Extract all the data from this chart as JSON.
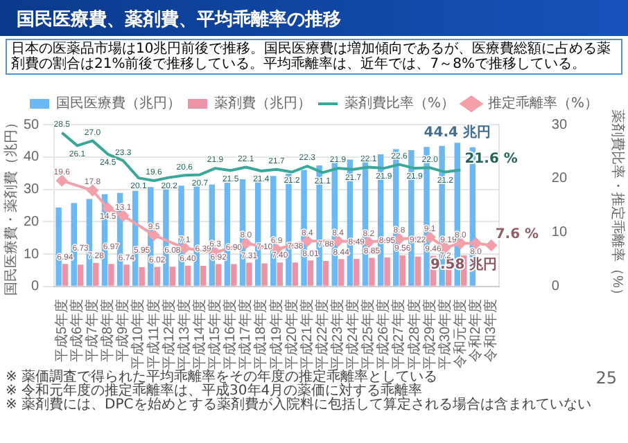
{
  "chart_data": {
    "type": "bar",
    "title": "国民医療費、薬剤費、平均乖離率の推移",
    "subtitle": "日本の医薬品市場は10兆円前後で推移。国民医療費は増加傾向であるが、医療費総額に占める薬剤費の割合は21%前後で推移している。平均乖離率は、近年では、7～8%で推移している。",
    "ylabel": "国民医療費・薬剤費（兆円）",
    "y2label": "薬剤費比率・推定乖離率（%）",
    "categories": [
      "平成5年度",
      "平成6年度",
      "平成7年度",
      "平成8年度",
      "平成9年度",
      "平成10年度",
      "平成11年度",
      "平成12年度",
      "平成13年度",
      "平成14年度",
      "平成15年度",
      "平成16年度",
      "平成17年度",
      "平成18年度",
      "平成19年度",
      "平成20年度",
      "平成21年度",
      "平成22年度",
      "平成23年度",
      "平成24年度",
      "平成25年度",
      "平成26年度",
      "平成27年度",
      "平成28年度",
      "平成29年度",
      "平成30年度",
      "令和元年度",
      "令和2年度",
      "令和3年度"
    ],
    "series": [
      {
        "name": "国民医療費（兆円）",
        "color": "#6cb8f2",
        "values": [
          24.4,
          25.8,
          27.0,
          28.5,
          28.9,
          29.5,
          30.7,
          30.1,
          31.1,
          31.0,
          31.5,
          32.1,
          33.1,
          33.1,
          34.1,
          34.8,
          36.0,
          37.4,
          38.6,
          39.2,
          40.1,
          40.8,
          42.4,
          42.1,
          43.1,
          43.4,
          44.4,
          43.0,
          null
        ],
        "value_labels": [
          null,
          null,
          null,
          null,
          null,
          null,
          null,
          null,
          null,
          null,
          null,
          null,
          null,
          null,
          null,
          null,
          null,
          null,
          null,
          null,
          null,
          null,
          null,
          null,
          null,
          null,
          "44.4 兆円",
          null,
          null
        ]
      },
      {
        "name": "薬剤費（兆円）",
        "color": "#ec93a5",
        "values": [
          6.94,
          6.73,
          7.28,
          6.97,
          6.74,
          5.95,
          6.02,
          6.08,
          6.4,
          6.39,
          6.92,
          6.9,
          7.31,
          7.1,
          7.4,
          7.38,
          8.01,
          7.88,
          8.44,
          8.49,
          8.85,
          8.95,
          9.56,
          9.22,
          9.46,
          9.19,
          9.58,
          null,
          null
        ],
        "value_labels": [
          "6.94",
          "6.73",
          "7.28",
          "6.97",
          "6.74",
          "5.95",
          "6.02",
          "6.08",
          "6.40",
          "6.39",
          "6.92",
          "6.90",
          "7.31",
          "7.10",
          "7.40",
          "7.38",
          "8.01",
          "7.88",
          "8.44",
          "8.49",
          "8.85",
          "8.95",
          "9.56",
          "9.22",
          "9.46",
          "9.19",
          "9.58 兆円",
          null,
          null
        ]
      },
      {
        "name": "薬剤費比率（%）",
        "type": "line",
        "axis": "y2",
        "color": "#3aa898",
        "marker": "none",
        "values": [
          28.5,
          26.1,
          27.0,
          24.5,
          23.3,
          20.1,
          19.6,
          20.2,
          20.6,
          20.7,
          21.9,
          21.5,
          22.1,
          21.4,
          21.7,
          21.2,
          22.3,
          21.1,
          21.9,
          21.7,
          22.1,
          21.9,
          22.6,
          21.9,
          22.0,
          21.2,
          21.6,
          null,
          null
        ],
        "value_labels": [
          "28.5",
          "26.1",
          "27.0",
          "24.5",
          "23.3",
          "20.1",
          "19.6",
          "20.2",
          "20.6",
          "20.7",
          "21.9",
          "21.5",
          "22.1",
          "21.4",
          "21.7",
          "21.2",
          "22.3",
          "21.1",
          "21.9",
          "21.7",
          "22.1",
          "21.9",
          "22.6",
          "21.9",
          "22.0",
          "21.2",
          "21.6 %",
          null,
          null
        ]
      },
      {
        "name": "推定乖離率（%）",
        "type": "line",
        "axis": "y2",
        "color": "#f4a0aa",
        "marker": "diamond",
        "values": [
          19.6,
          null,
          17.8,
          14.5,
          13.1,
          null,
          9.5,
          null,
          7.1,
          null,
          6.3,
          null,
          8.0,
          null,
          6.9,
          null,
          8.4,
          null,
          8.4,
          null,
          8.2,
          null,
          8.8,
          null,
          9.1,
          7.2,
          8.0,
          8.0,
          7.6
        ],
        "value_labels": [
          "19.6",
          null,
          "17.8",
          "14.5",
          "13.1",
          null,
          "9.5",
          null,
          "7.1",
          null,
          "6.3",
          null,
          "8.0",
          null,
          "6.9",
          null,
          "8.4",
          null,
          "8.4",
          null,
          "8.2",
          null,
          "8.8",
          null,
          "9.1",
          "7.2",
          "8.0",
          "8.0",
          "7.6 %"
        ]
      }
    ],
    "ylim": [
      0,
      50
    ],
    "yticks": [
      0,
      10,
      20,
      30,
      40,
      50
    ],
    "y2lim": [
      0,
      30
    ],
    "y2ticks": [
      0,
      10,
      20,
      30
    ],
    "grid": "y",
    "legend": "top",
    "annotations": [
      "※ 薬価調査で得られた平均乖離率をその年度の推定乖離率としている",
      "※ 令和元年度の推定乖離率は、平成30年4月の薬価に対する乖離率",
      "※ 薬剤費には、DPCを始めとする薬剤費が入院料に包括して算定される場合は含まれていない",
      "25"
    ]
  }
}
